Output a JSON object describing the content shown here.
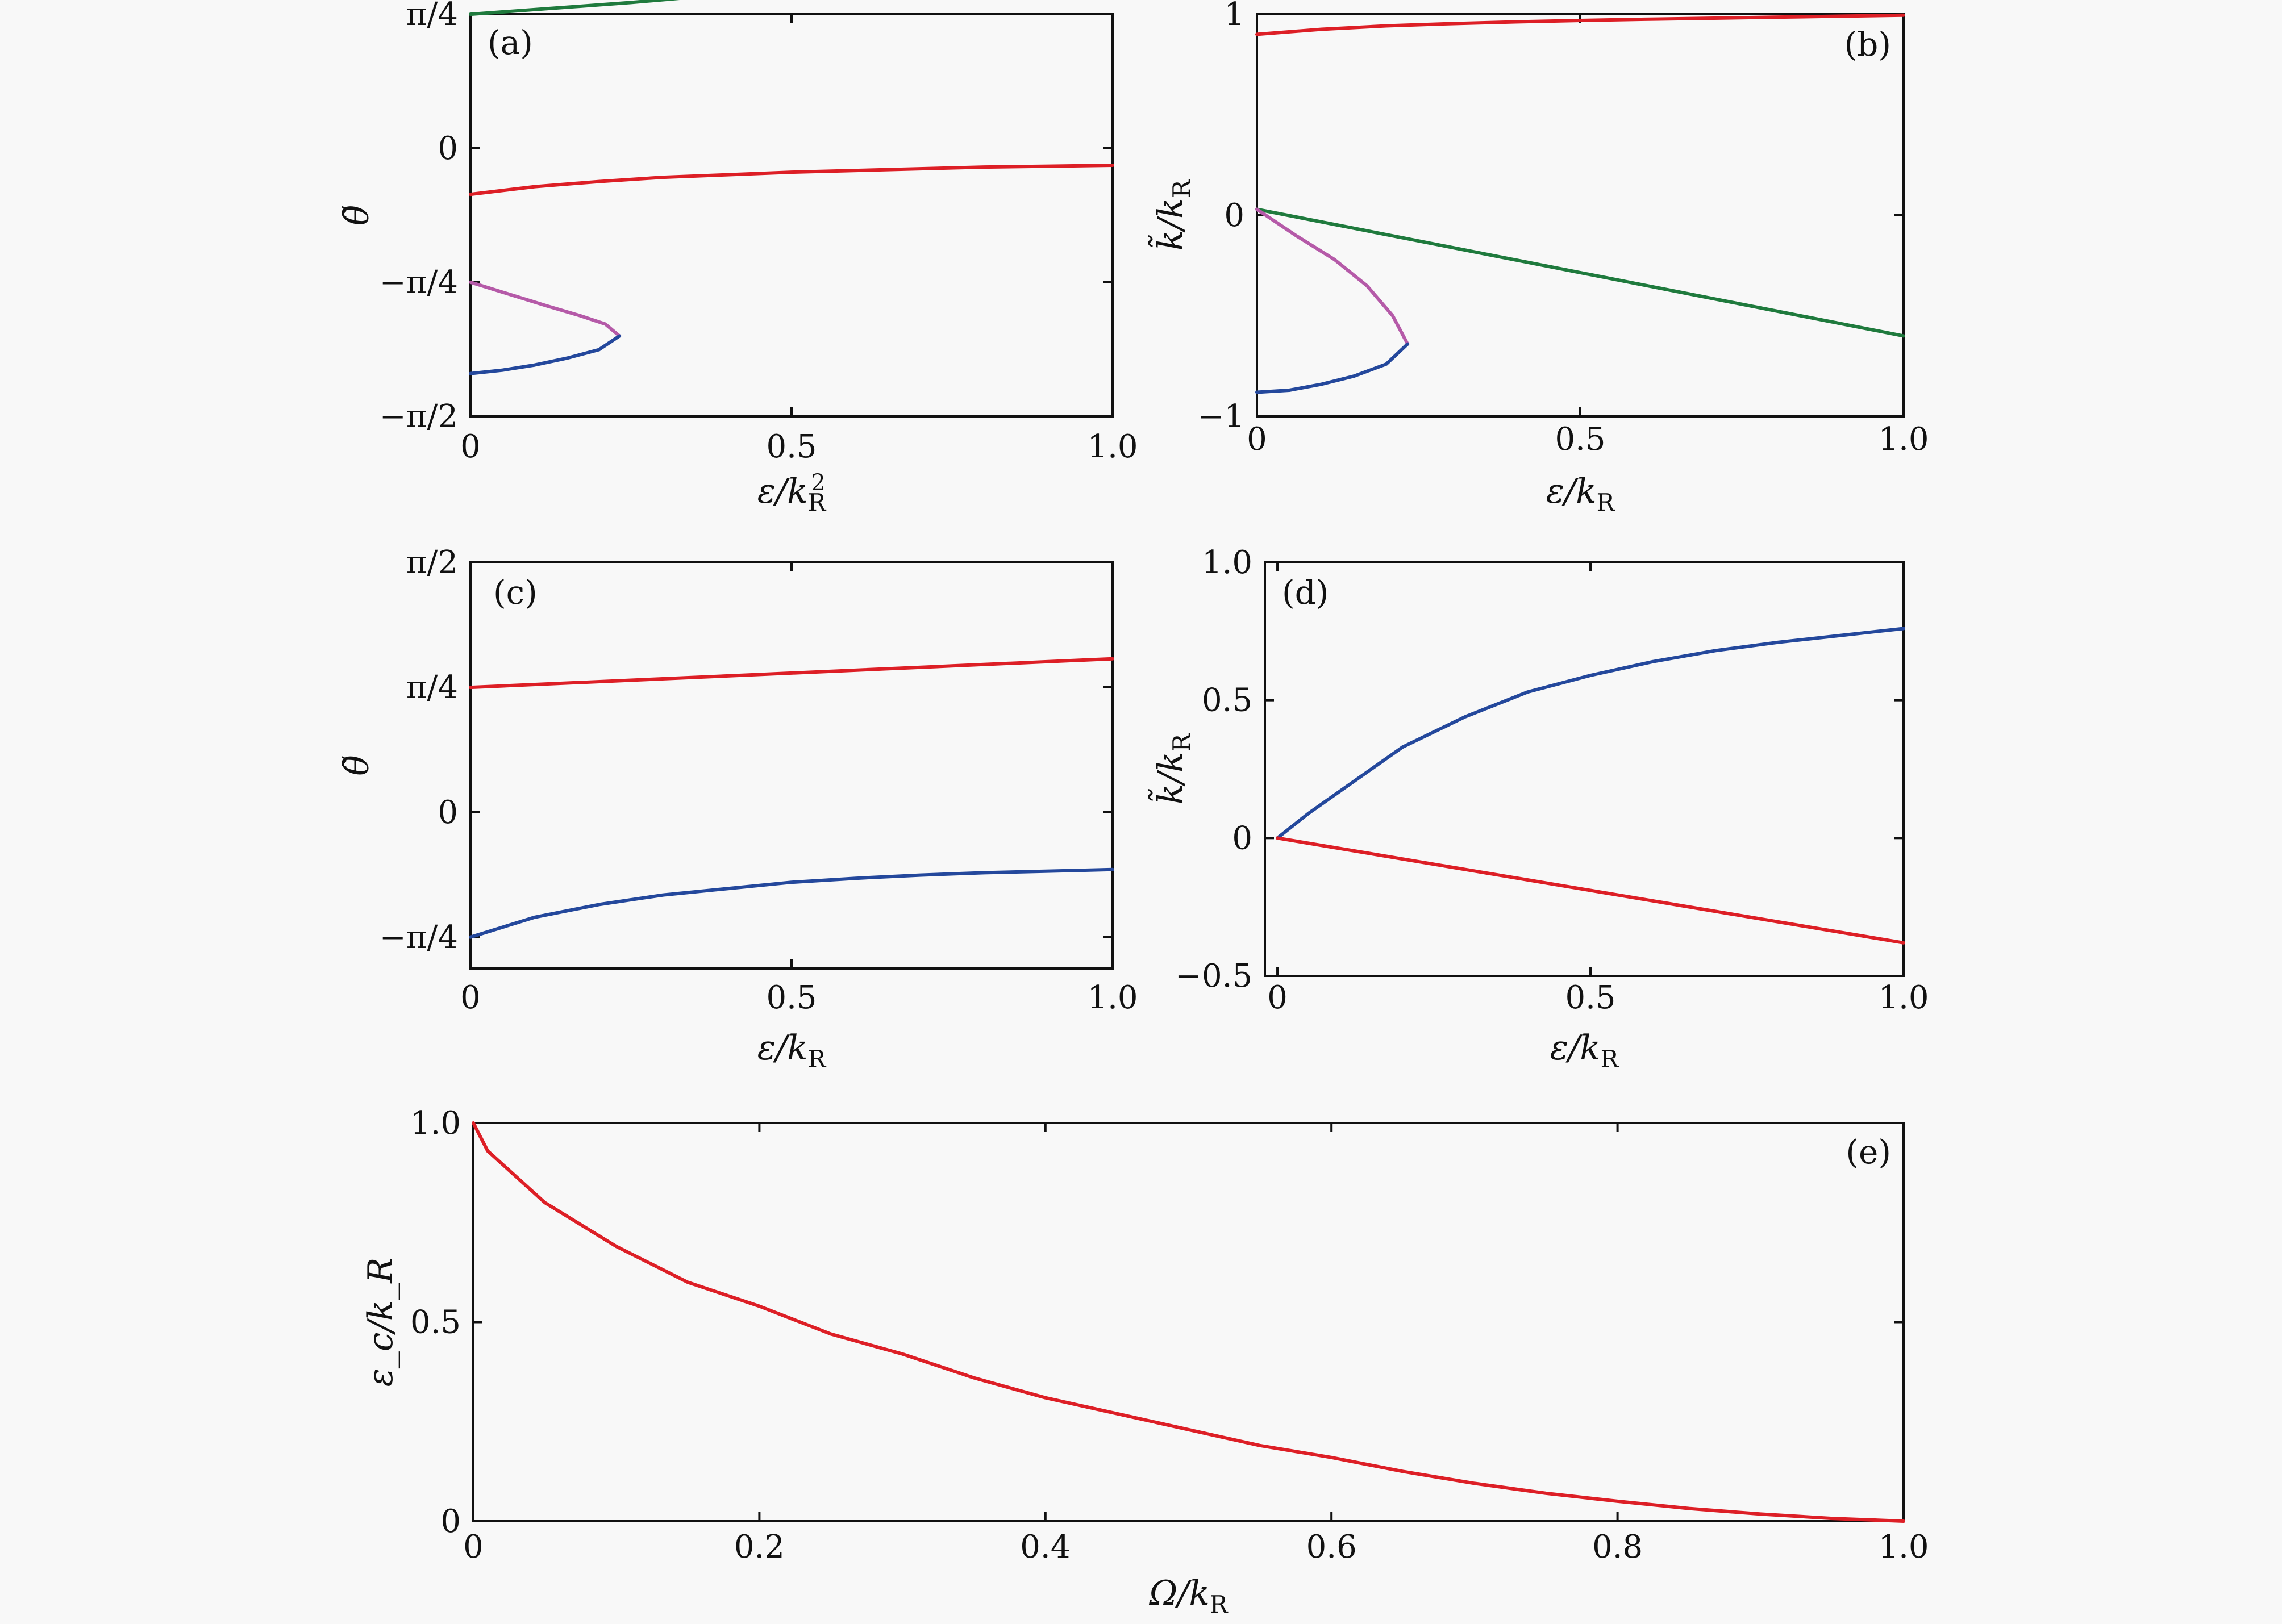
{
  "colors": {
    "red": "#dd1f26",
    "green": "#1f7a3d",
    "blue": "#24489c",
    "magenta": "#b55aa8",
    "axis": "#111111",
    "background": "#f8f8f8"
  },
  "chart_data": [
    {
      "id": "a",
      "type": "line",
      "tag": "(a)",
      "xlabel": "ε/k_R^2",
      "ylabel": "θ̃",
      "xlim": [
        0,
        1
      ],
      "ylim": [
        -1.5708,
        0.7854
      ],
      "x_ticks": [
        {
          "value": 0,
          "label": "0"
        },
        {
          "value": 0.5,
          "label": "0.5"
        },
        {
          "value": 1,
          "label": "1.0"
        }
      ],
      "y_ticks": [
        {
          "value": -1.5708,
          "label": "−π/2"
        },
        {
          "value": -0.7854,
          "label": "−π/4"
        },
        {
          "value": 0,
          "label": "0"
        },
        {
          "value": 0.7854,
          "label": "π/4"
        }
      ],
      "series": [
        {
          "color": "green",
          "x": [
            0,
            0.25,
            0.5,
            0.75,
            1.0
          ],
          "y": [
            0.785,
            0.854,
            0.935,
            1.017,
            1.1
          ]
        },
        {
          "color": "red",
          "x": [
            0,
            0.1,
            0.2,
            0.3,
            0.4,
            0.5,
            0.6,
            0.7,
            0.8,
            0.9,
            1.0
          ],
          "y": [
            -0.27,
            -0.225,
            -0.195,
            -0.17,
            -0.155,
            -0.14,
            -0.13,
            -0.12,
            -0.11,
            -0.105,
            -0.1
          ]
        },
        {
          "color": "magenta",
          "x": [
            0,
            0.06,
            0.12,
            0.17,
            0.21,
            0.232
          ],
          "y": [
            -0.785,
            -0.855,
            -0.925,
            -0.98,
            -1.03,
            -1.1
          ]
        },
        {
          "color": "blue",
          "x": [
            0.232,
            0.2,
            0.15,
            0.1,
            0.05,
            0
          ],
          "y": [
            -1.1,
            -1.18,
            -1.23,
            -1.27,
            -1.3,
            -1.32
          ]
        }
      ]
    },
    {
      "id": "b",
      "type": "line",
      "tag": "(b)",
      "xlabel": "ε/k_R",
      "ylabel": "k̃/k_R",
      "xlim": [
        0,
        1
      ],
      "ylim": [
        -1,
        1
      ],
      "x_ticks": [
        {
          "value": 0,
          "label": "0"
        },
        {
          "value": 0.5,
          "label": "0.5"
        },
        {
          "value": 1,
          "label": "1.0"
        }
      ],
      "y_ticks": [
        {
          "value": -1,
          "label": "−1"
        },
        {
          "value": 0,
          "label": "0"
        },
        {
          "value": 1,
          "label": "1"
        }
      ],
      "series": [
        {
          "color": "red",
          "x": [
            0,
            0.1,
            0.2,
            0.3,
            0.4,
            0.5,
            0.6,
            0.7,
            0.8,
            0.9,
            1.0
          ],
          "y": [
            0.9,
            0.925,
            0.942,
            0.953,
            0.962,
            0.969,
            0.975,
            0.98,
            0.985,
            0.99,
            0.995
          ]
        },
        {
          "color": "green",
          "x": [
            0,
            1.0
          ],
          "y": [
            0.03,
            -0.6
          ]
        },
        {
          "color": "magenta",
          "x": [
            0,
            0.06,
            0.12,
            0.17,
            0.21,
            0.233
          ],
          "y": [
            0.03,
            -0.1,
            -0.22,
            -0.35,
            -0.5,
            -0.64
          ]
        },
        {
          "color": "blue",
          "x": [
            0.233,
            0.2,
            0.15,
            0.1,
            0.05,
            0
          ],
          "y": [
            -0.64,
            -0.74,
            -0.8,
            -0.84,
            -0.87,
            -0.88
          ]
        }
      ]
    },
    {
      "id": "c",
      "type": "line",
      "tag": "(c)",
      "xlabel": "ε/k_R",
      "ylabel": "θ̃",
      "xlim": [
        0,
        1
      ],
      "ylim": [
        -0.982,
        1.5708
      ],
      "x_ticks": [
        {
          "value": 0,
          "label": "0"
        },
        {
          "value": 0.5,
          "label": "0.5"
        },
        {
          "value": 1,
          "label": "1.0"
        }
      ],
      "y_ticks": [
        {
          "value": -0.7854,
          "label": "−π/4"
        },
        {
          "value": 0,
          "label": "0"
        },
        {
          "value": 0.7854,
          "label": "π/4"
        },
        {
          "value": 1.5708,
          "label": "π/2"
        }
      ],
      "series": [
        {
          "color": "red",
          "x": [
            0,
            0.25,
            0.5,
            0.75,
            1.0
          ],
          "y": [
            0.785,
            0.83,
            0.875,
            0.92,
            0.965
          ]
        },
        {
          "color": "blue",
          "x": [
            0,
            0.1,
            0.2,
            0.3,
            0.4,
            0.5,
            0.6,
            0.7,
            0.8,
            0.9,
            1.0
          ],
          "y": [
            -0.785,
            -0.66,
            -0.58,
            -0.52,
            -0.48,
            -0.44,
            -0.415,
            -0.395,
            -0.38,
            -0.37,
            -0.36
          ]
        }
      ]
    },
    {
      "id": "d",
      "type": "line",
      "tag": "(d)",
      "xlabel": "ε/k_R",
      "ylabel": "k̃/k_R",
      "xlim": [
        -0.02,
        1
      ],
      "ylim": [
        -0.5,
        1
      ],
      "x_ticks": [
        {
          "value": 0,
          "label": "0"
        },
        {
          "value": 0.5,
          "label": "0.5"
        },
        {
          "value": 1,
          "label": "1.0"
        }
      ],
      "y_ticks": [
        {
          "value": -0.5,
          "label": "−0.5"
        },
        {
          "value": 0,
          "label": "0"
        },
        {
          "value": 0.5,
          "label": "0.5"
        },
        {
          "value": 1,
          "label": "1.0"
        }
      ],
      "series": [
        {
          "color": "blue",
          "x": [
            0,
            0.05,
            0.1,
            0.2,
            0.3,
            0.4,
            0.5,
            0.6,
            0.7,
            0.8,
            0.9,
            1.0
          ],
          "y": [
            0,
            0.09,
            0.17,
            0.33,
            0.44,
            0.53,
            0.59,
            0.64,
            0.68,
            0.71,
            0.735,
            0.76
          ]
        },
        {
          "color": "red",
          "x": [
            0,
            1.0
          ],
          "y": [
            0,
            -0.38
          ]
        }
      ]
    },
    {
      "id": "e",
      "type": "line",
      "tag": "(e)",
      "xlabel": "Ω/k_R",
      "ylabel": "ε_c/k_R",
      "xlim": [
        0,
        1
      ],
      "ylim": [
        0,
        1
      ],
      "x_ticks": [
        {
          "value": 0,
          "label": "0"
        },
        {
          "value": 0.2,
          "label": "0.2"
        },
        {
          "value": 0.4,
          "label": "0.4"
        },
        {
          "value": 0.6,
          "label": "0.6"
        },
        {
          "value": 0.8,
          "label": "0.8"
        },
        {
          "value": 1,
          "label": "1.0"
        }
      ],
      "y_ticks": [
        {
          "value": 0,
          "label": "0"
        },
        {
          "value": 0.5,
          "label": "0.5"
        },
        {
          "value": 1,
          "label": "1.0"
        }
      ],
      "series": [
        {
          "color": "red",
          "x": [
            0,
            0.01,
            0.05,
            0.1,
            0.15,
            0.2,
            0.25,
            0.3,
            0.35,
            0.4,
            0.45,
            0.5,
            0.55,
            0.6,
            0.65,
            0.7,
            0.75,
            0.8,
            0.85,
            0.9,
            0.95,
            1.0
          ],
          "y": [
            1.0,
            0.93,
            0.8,
            0.69,
            0.6,
            0.54,
            0.47,
            0.42,
            0.36,
            0.31,
            0.27,
            0.23,
            0.19,
            0.16,
            0.125,
            0.095,
            0.07,
            0.05,
            0.032,
            0.018,
            0.007,
            0
          ]
        }
      ]
    }
  ]
}
